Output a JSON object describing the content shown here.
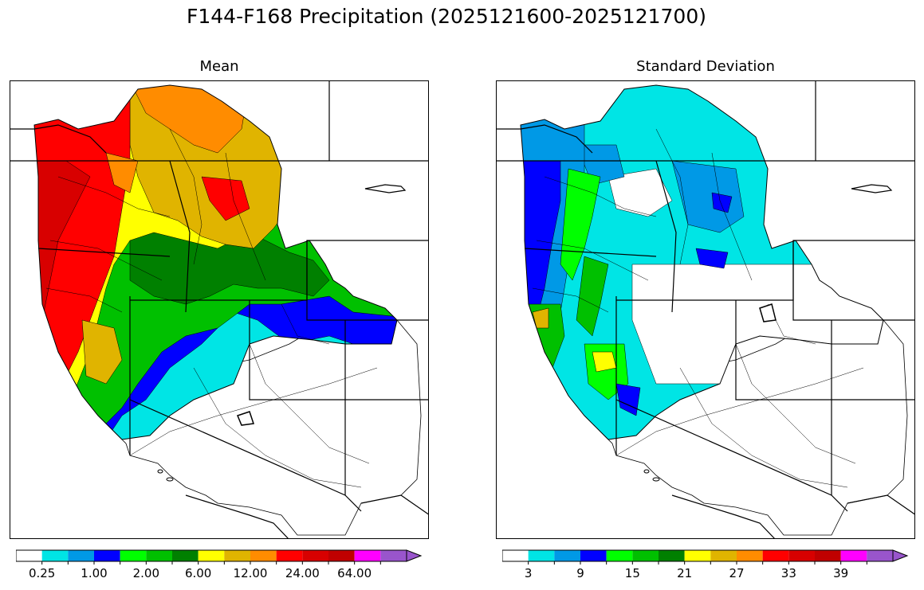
{
  "figure_title": "F144-F168 Precipitation (2025121600-2025121700)",
  "panels": [
    {
      "id": "mean",
      "title": "Mean",
      "colorbar": {
        "colors": [
          "#ffffff",
          "#00e5e5",
          "#0099e6",
          "#0000ff",
          "#00ff00",
          "#00c000",
          "#008000",
          "#ffff00",
          "#e0b400",
          "#ff8c00",
          "#ff0000",
          "#d80000",
          "#c00000",
          "#ff00ff",
          "#9955cc"
        ],
        "extend": "max",
        "tick_labels": [
          "0.25",
          "1.00",
          "2.00",
          "6.00",
          "12.00",
          "24.00",
          "64.00"
        ],
        "label_positions": [
          1,
          3,
          5,
          7,
          9,
          11,
          13
        ]
      }
    },
    {
      "id": "stddev",
      "title": "Standard Deviation",
      "colorbar": {
        "colors": [
          "#ffffff",
          "#00e5e5",
          "#0099e6",
          "#0000ff",
          "#00ff00",
          "#00c000",
          "#008000",
          "#ffff00",
          "#e0b400",
          "#ff8c00",
          "#ff0000",
          "#d80000",
          "#c00000",
          "#ff00ff",
          "#9955cc"
        ],
        "extend": "max",
        "tick_labels": [
          "3",
          "9",
          "15",
          "21",
          "27",
          "33",
          "39"
        ],
        "label_positions": [
          1,
          3,
          5,
          7,
          9,
          11,
          13
        ]
      }
    }
  ]
}
